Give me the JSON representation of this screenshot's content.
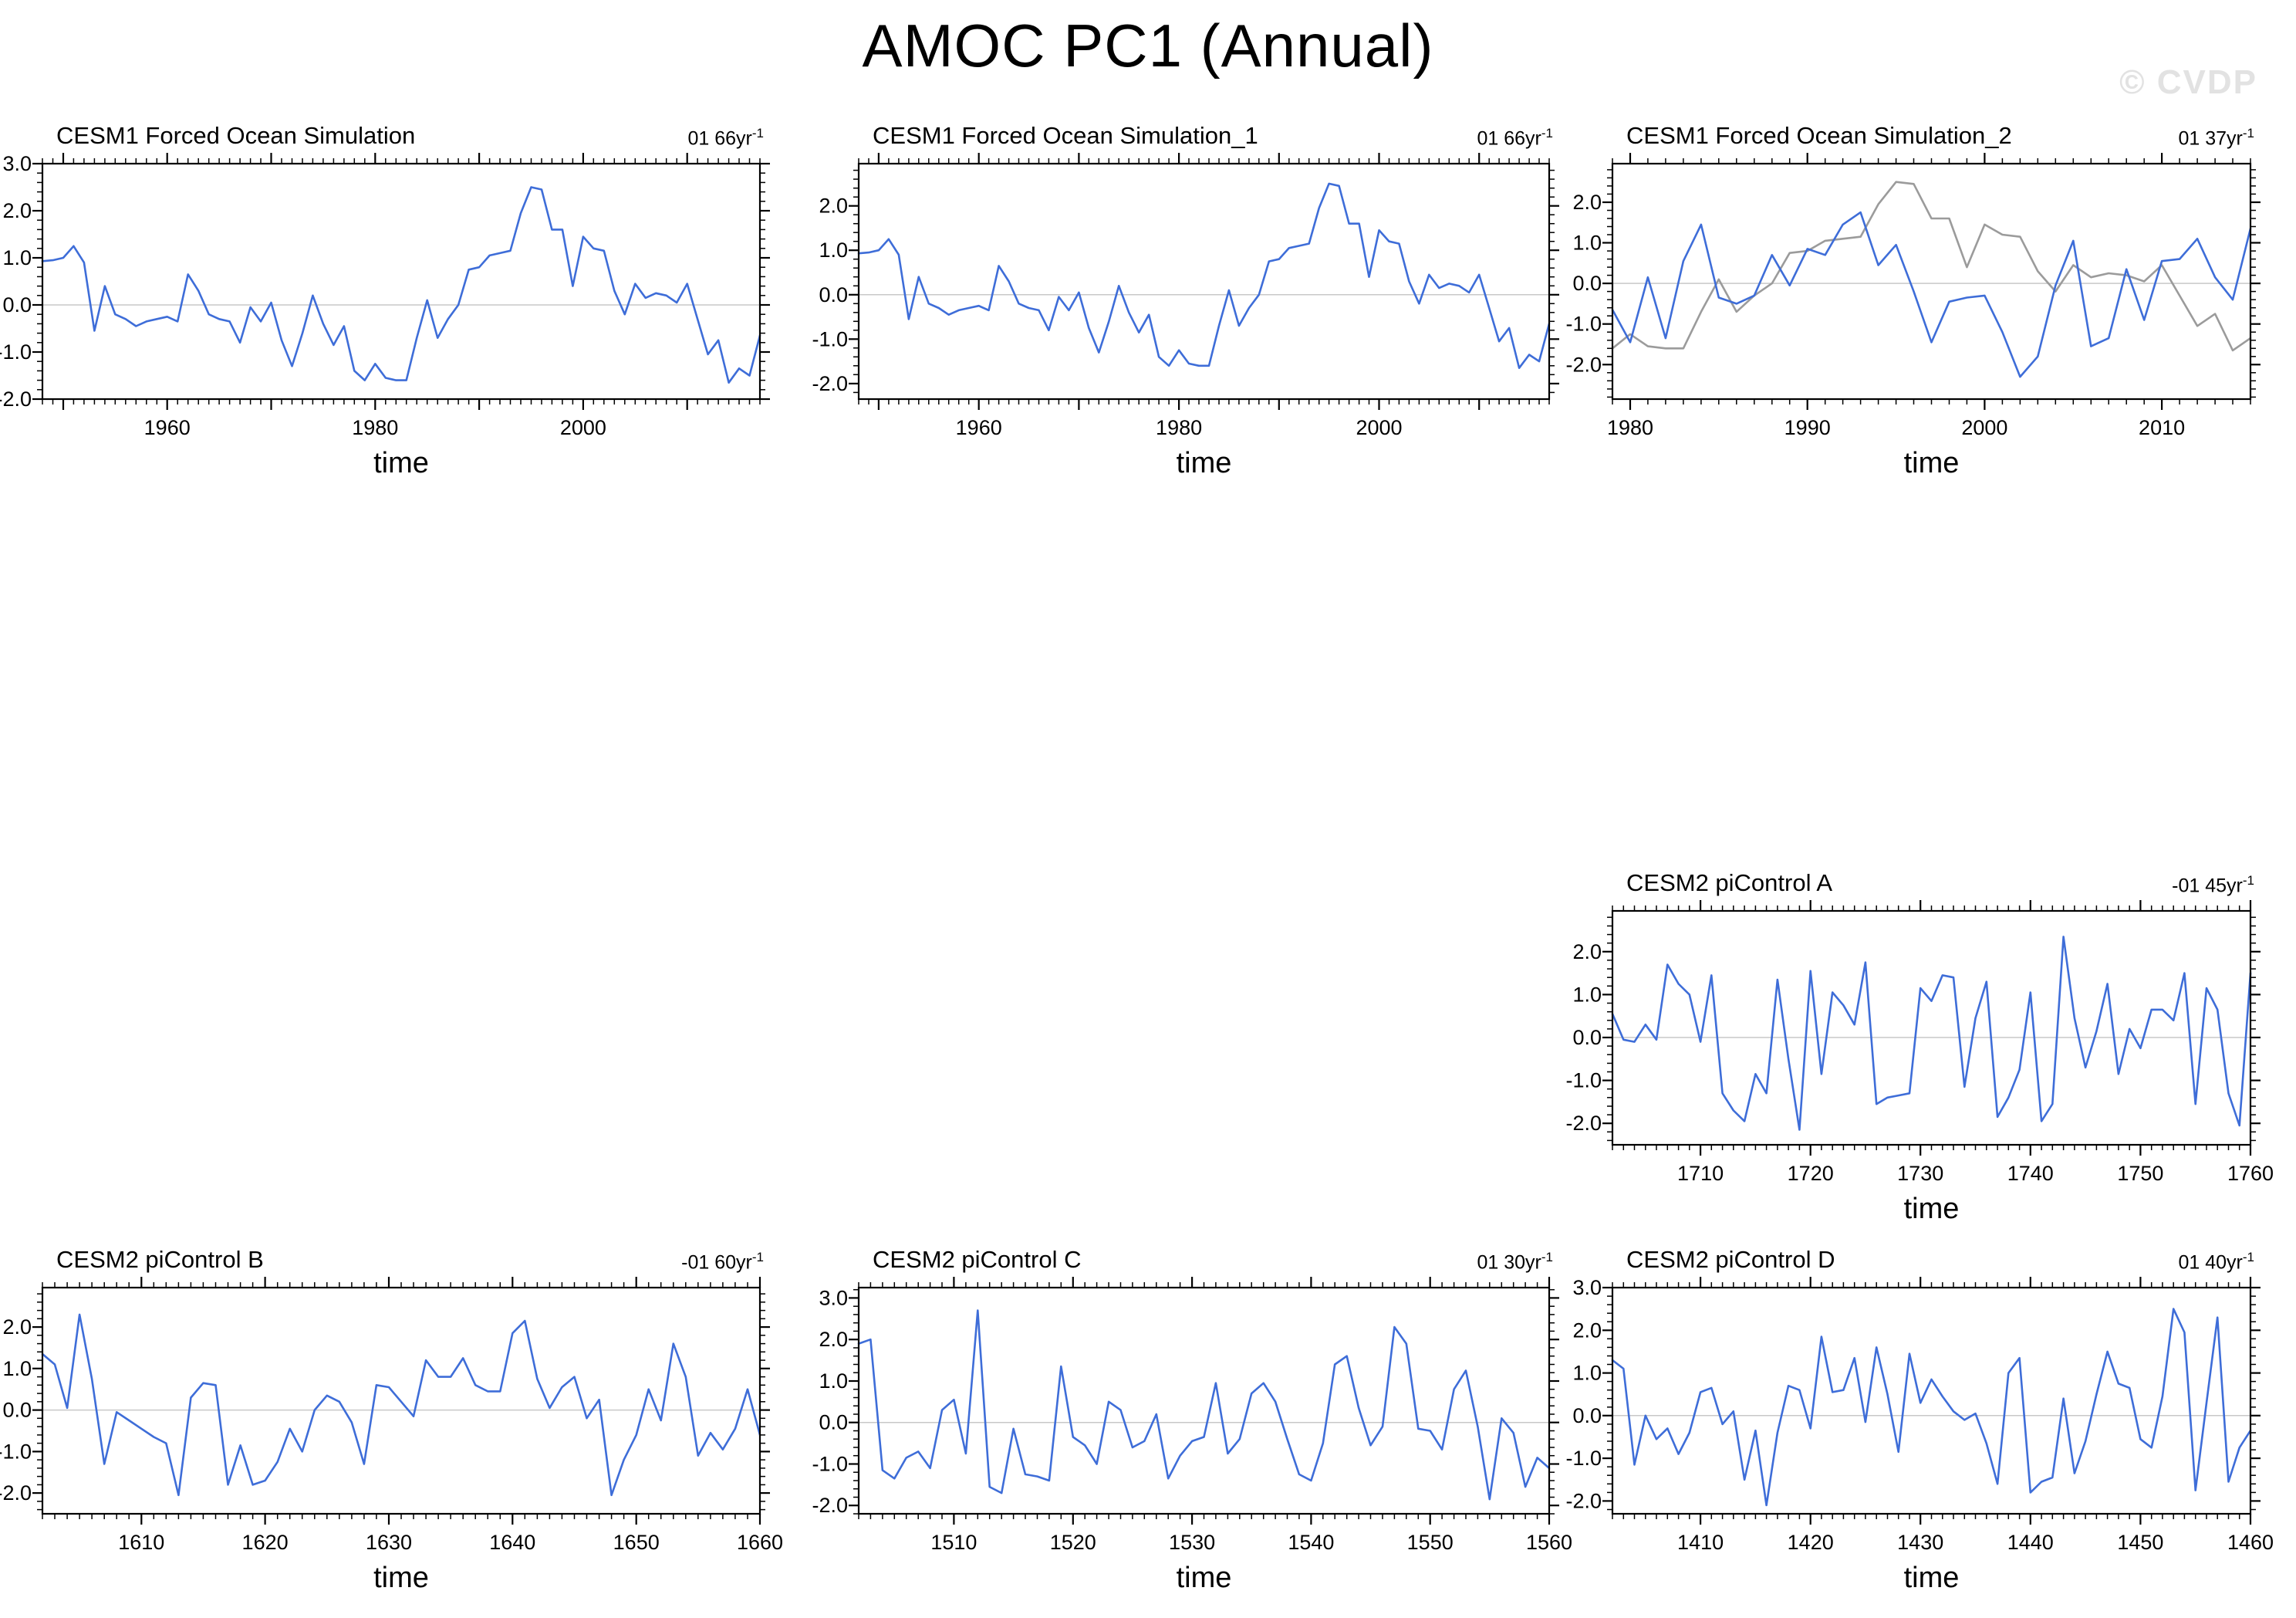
{
  "page": {
    "title": "AMOC PC1 (Annual)",
    "watermark": "© CVDP"
  },
  "style": {
    "accent_blue": "#3e6dd8",
    "overlay_gray": "#9b9b9b",
    "zero_line_color": "#c8c8c8",
    "watermark_color": "#e2e2e2",
    "axis_color": "#000000"
  },
  "chart_data": [
    {
      "type": "line",
      "title": "CESM1 Forced Ocean Simulation",
      "stat_label": {
        "text": "01 66yr",
        "sup": "-1"
      },
      "xlabel": "time",
      "pos": {
        "row": 0,
        "col": 0
      },
      "x_start": 1948,
      "xlim": [
        1948,
        2017
      ],
      "xtick_labels": [
        1960,
        1980,
        2000
      ],
      "ylim": [
        -2.0,
        3.0
      ],
      "ytick_labels": [
        3.0,
        2.0,
        1.0,
        0.0,
        -1.0,
        -2.0
      ],
      "zero_line": true,
      "legend": "none",
      "series": [
        {
          "name": "blue-line",
          "color": "#3e6dd8",
          "values": [
            0.93,
            0.95,
            1.0,
            1.25,
            0.9,
            -0.55,
            0.4,
            -0.2,
            -0.3,
            -0.45,
            -0.35,
            -0.3,
            -0.25,
            -0.35,
            0.65,
            0.3,
            -0.2,
            -0.3,
            -0.35,
            -0.8,
            -0.05,
            -0.35,
            0.05,
            -0.75,
            -1.3,
            -0.6,
            0.2,
            -0.4,
            -0.85,
            -0.45,
            -1.4,
            -1.6,
            -1.25,
            -1.55,
            -1.6,
            -1.6,
            -0.7,
            0.1,
            -0.7,
            -0.3,
            0.0,
            0.75,
            0.8,
            1.05,
            1.1,
            1.15,
            1.95,
            2.5,
            2.45,
            1.6,
            1.6,
            0.4,
            1.45,
            1.2,
            1.15,
            0.3,
            -0.2,
            0.45,
            0.15,
            0.25,
            0.2,
            0.05,
            0.45,
            -0.3,
            -1.05,
            -0.75,
            -1.65,
            -1.35,
            -1.5,
            -0.65
          ]
        }
      ]
    },
    {
      "type": "line",
      "title": "CESM1 Forced Ocean Simulation_1",
      "stat_label": {
        "text": "01 66yr",
        "sup": "-1"
      },
      "xlabel": "time",
      "pos": {
        "row": 0,
        "col": 1
      },
      "x_start": 1948,
      "xlim": [
        1948,
        2017
      ],
      "xtick_labels": [
        1960,
        1980,
        2000
      ],
      "ylim": [
        -2.35,
        2.95
      ],
      "ytick_labels": [
        2.0,
        1.0,
        0.0,
        -1.0,
        -2.0
      ],
      "zero_line": true,
      "legend": "none",
      "series": [
        {
          "name": "blue-line",
          "color": "#3e6dd8",
          "values": [
            0.93,
            0.95,
            1.0,
            1.25,
            0.9,
            -0.55,
            0.4,
            -0.2,
            -0.3,
            -0.45,
            -0.35,
            -0.3,
            -0.25,
            -0.35,
            0.65,
            0.3,
            -0.2,
            -0.3,
            -0.35,
            -0.8,
            -0.05,
            -0.35,
            0.05,
            -0.75,
            -1.3,
            -0.6,
            0.2,
            -0.4,
            -0.85,
            -0.45,
            -1.4,
            -1.6,
            -1.25,
            -1.55,
            -1.6,
            -1.6,
            -0.7,
            0.1,
            -0.7,
            -0.3,
            0.0,
            0.75,
            0.8,
            1.05,
            1.1,
            1.15,
            1.95,
            2.5,
            2.45,
            1.6,
            1.6,
            0.4,
            1.45,
            1.2,
            1.15,
            0.3,
            -0.2,
            0.45,
            0.15,
            0.25,
            0.2,
            0.05,
            0.45,
            -0.3,
            -1.05,
            -0.75,
            -1.65,
            -1.35,
            -1.5,
            -0.65
          ]
        }
      ]
    },
    {
      "type": "line",
      "title": "CESM1 Forced Ocean Simulation_2",
      "stat_label": {
        "text": "01 37yr",
        "sup": "-1"
      },
      "xlabel": "time",
      "pos": {
        "row": 0,
        "col": 2
      },
      "x_start": 1979,
      "xlim": [
        1979,
        2015
      ],
      "xtick_labels": [
        1980,
        1990,
        2000,
        2010
      ],
      "ylim": [
        -2.85,
        2.95
      ],
      "ytick_labels": [
        2.0,
        1.0,
        0.0,
        -1.0,
        -2.0
      ],
      "zero_line": true,
      "legend": "none",
      "series": [
        {
          "name": "gray-line",
          "color": "#9b9b9b",
          "values": [
            -1.6,
            -1.25,
            -1.55,
            -1.6,
            -1.6,
            -0.7,
            0.1,
            -0.7,
            -0.3,
            0.0,
            0.75,
            0.8,
            1.05,
            1.1,
            1.15,
            1.95,
            2.5,
            2.45,
            1.6,
            1.6,
            0.4,
            1.45,
            1.2,
            1.15,
            0.3,
            -0.2,
            0.45,
            0.15,
            0.25,
            0.2,
            0.05,
            0.45,
            -0.3,
            -1.05,
            -0.75,
            -1.65,
            -1.35
          ]
        },
        {
          "name": "blue-line",
          "color": "#3e6dd8",
          "values": [
            -0.65,
            -1.45,
            0.15,
            -1.35,
            0.55,
            1.45,
            -0.35,
            -0.5,
            -0.3,
            0.7,
            -0.05,
            0.85,
            0.7,
            1.45,
            1.75,
            0.45,
            0.95,
            -0.2,
            -1.45,
            -0.45,
            -0.35,
            -0.3,
            -1.2,
            -2.3,
            -1.8,
            -0.05,
            1.05,
            -1.55,
            -1.35,
            0.35,
            -0.9,
            0.55,
            0.6,
            1.1,
            0.15,
            -0.4,
            1.35
          ]
        }
      ]
    },
    {
      "type": "line",
      "title": "CESM2 piControl A",
      "stat_label": {
        "text": "-01 45yr",
        "sup": "-1"
      },
      "xlabel": "time",
      "pos": {
        "row": 1,
        "col": 2
      },
      "x_start": 1702,
      "xlim": [
        1702,
        1760
      ],
      "xtick_labels": [
        1710,
        1720,
        1730,
        1740,
        1750,
        1760
      ],
      "ylim": [
        -2.5,
        2.95
      ],
      "ytick_labels": [
        2.0,
        1.0,
        0.0,
        -1.0,
        -2.0
      ],
      "zero_line": true,
      "legend": "none",
      "series": [
        {
          "name": "blue-line",
          "color": "#3e6dd8",
          "values": [
            0.55,
            -0.05,
            -0.1,
            0.3,
            -0.05,
            1.7,
            1.25,
            1.0,
            -0.1,
            1.45,
            -1.3,
            -1.7,
            -1.95,
            -0.85,
            -1.3,
            1.35,
            -0.5,
            -2.15,
            1.55,
            -0.85,
            1.05,
            0.75,
            0.3,
            1.75,
            -1.55,
            -1.4,
            -1.35,
            -1.3,
            1.15,
            0.85,
            1.45,
            1.4,
            -1.15,
            0.45,
            1.3,
            -1.85,
            -1.4,
            -0.75,
            1.05,
            -1.95,
            -1.55,
            2.35,
            0.45,
            -0.7,
            0.15,
            1.25,
            -0.85,
            0.2,
            -0.25,
            0.65,
            0.65,
            0.4,
            1.5,
            -1.55,
            1.15,
            0.65,
            -1.3,
            -2.05,
            1.5
          ]
        }
      ]
    },
    {
      "type": "line",
      "title": "CESM2 piControl B",
      "stat_label": {
        "text": "-01 60yr",
        "sup": "-1"
      },
      "xlabel": "time",
      "pos": {
        "row": 2,
        "col": 0
      },
      "x_start": 1602,
      "xlim": [
        1602,
        1660
      ],
      "xtick_labels": [
        1610,
        1620,
        1630,
        1640,
        1650,
        1660
      ],
      "ylim": [
        -2.5,
        2.95
      ],
      "ytick_labels": [
        2.0,
        1.0,
        0.0,
        -1.0,
        -2.0
      ],
      "zero_line": true,
      "legend": "none",
      "series": [
        {
          "name": "blue-line",
          "color": "#3e6dd8",
          "values": [
            1.35,
            1.1,
            0.05,
            2.3,
            0.75,
            -1.3,
            -0.05,
            -0.25,
            -0.45,
            -0.65,
            -0.8,
            -2.05,
            0.3,
            0.65,
            0.6,
            -1.8,
            -0.85,
            -1.8,
            -1.7,
            -1.25,
            -0.45,
            -1.0,
            0.0,
            0.35,
            0.2,
            -0.3,
            -1.3,
            0.6,
            0.55,
            0.2,
            -0.15,
            1.2,
            0.8,
            0.8,
            1.25,
            0.6,
            0.45,
            0.45,
            1.85,
            2.15,
            0.75,
            0.05,
            0.55,
            0.8,
            -0.2,
            0.25,
            -2.05,
            -1.2,
            -0.6,
            0.5,
            -0.25,
            1.6,
            0.8,
            -1.1,
            -0.55,
            -0.95,
            -0.45,
            0.5,
            -0.6
          ]
        }
      ]
    },
    {
      "type": "line",
      "title": "CESM2 piControl C",
      "stat_label": {
        "text": "01 30yr",
        "sup": "-1"
      },
      "xlabel": "time",
      "pos": {
        "row": 2,
        "col": 1
      },
      "x_start": 1502,
      "xlim": [
        1502,
        1560
      ],
      "xtick_labels": [
        1510,
        1520,
        1530,
        1540,
        1550,
        1560
      ],
      "ylim": [
        -2.2,
        3.25
      ],
      "ytick_labels": [
        3.0,
        2.0,
        1.0,
        0.0,
        -1.0,
        -2.0
      ],
      "zero_line": true,
      "legend": "none",
      "series": [
        {
          "name": "blue-line",
          "color": "#3e6dd8",
          "values": [
            1.9,
            2.0,
            -1.15,
            -1.35,
            -0.85,
            -0.7,
            -1.1,
            0.3,
            0.55,
            -0.75,
            2.7,
            -1.55,
            -1.7,
            -0.15,
            -1.25,
            -1.3,
            -1.4,
            1.35,
            -0.35,
            -0.55,
            -1.0,
            0.5,
            0.3,
            -0.6,
            -0.45,
            0.2,
            -1.35,
            -0.8,
            -0.45,
            -0.35,
            0.95,
            -0.75,
            -0.4,
            0.7,
            0.95,
            0.5,
            -0.4,
            -1.25,
            -1.4,
            -0.5,
            1.4,
            1.6,
            0.35,
            -0.55,
            -0.1,
            2.3,
            1.9,
            -0.15,
            -0.2,
            -0.65,
            0.8,
            1.25,
            -0.1,
            -1.85,
            0.1,
            -0.25,
            -1.55,
            -0.85,
            -1.1
          ]
        }
      ]
    },
    {
      "type": "line",
      "title": "CESM2 piControl D",
      "stat_label": {
        "text": "01 40yr",
        "sup": "-1"
      },
      "xlabel": "time",
      "pos": {
        "row": 2,
        "col": 2
      },
      "x_start": 1402,
      "xlim": [
        1402,
        1460
      ],
      "xtick_labels": [
        1410,
        1420,
        1430,
        1440,
        1450,
        1460
      ],
      "ylim": [
        -2.3,
        3.0
      ],
      "ytick_labels": [
        3.0,
        2.0,
        1.0,
        0.0,
        -1.0,
        -2.0
      ],
      "zero_line": true,
      "legend": "none",
      "series": [
        {
          "name": "blue-line",
          "color": "#3e6dd8",
          "values": [
            1.3,
            1.1,
            -1.15,
            0.0,
            -0.55,
            -0.3,
            -0.9,
            -0.4,
            0.55,
            0.65,
            -0.2,
            0.1,
            -1.5,
            -0.35,
            -2.1,
            -0.4,
            0.7,
            0.6,
            -0.3,
            1.85,
            0.55,
            0.6,
            1.35,
            -0.15,
            1.6,
            0.5,
            -0.85,
            1.45,
            0.3,
            0.85,
            0.45,
            0.1,
            -0.1,
            0.05,
            -0.65,
            -1.6,
            1.0,
            1.35,
            -1.8,
            -1.55,
            -1.45,
            0.4,
            -1.35,
            -0.6,
            0.5,
            1.5,
            0.75,
            0.65,
            -0.55,
            -0.75,
            0.45,
            2.5,
            1.95,
            -1.75,
            0.3,
            2.3,
            -1.55,
            -0.75,
            -0.35
          ]
        }
      ]
    }
  ]
}
